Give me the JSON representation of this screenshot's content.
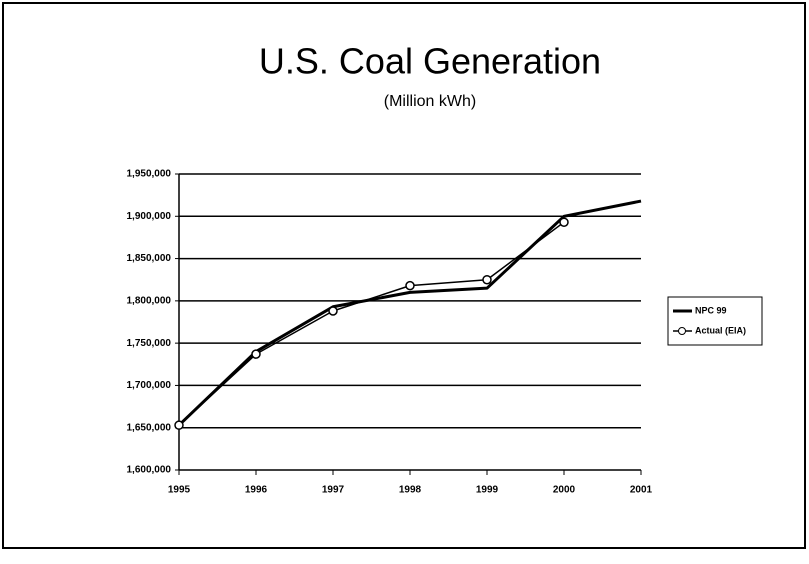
{
  "chart_data": {
    "type": "line",
    "title": "U.S. Coal Generation",
    "subtitle": "(Million kWh)",
    "x": [
      1995,
      1996,
      1997,
      1998,
      1999,
      2000,
      2001
    ],
    "series": [
      {
        "name": "NPC 99",
        "color": "#000000",
        "values": [
          1653000,
          1740000,
          1793000,
          1810000,
          1815000,
          1900000,
          1918000
        ]
      },
      {
        "name": "Actual (EIA)",
        "color": "#000000",
        "marker": "circle",
        "values": [
          1653000,
          1737000,
          1788000,
          1818000,
          1825000,
          1893000,
          null
        ]
      }
    ],
    "xlim": [
      1995,
      2001
    ],
    "xticks": [
      1995,
      1996,
      1997,
      1998,
      1999,
      2000,
      2001
    ],
    "ylim": [
      1600000,
      1950000
    ],
    "yticks": [
      {
        "value": 1600000,
        "label": "1,600,000"
      },
      {
        "value": 1650000,
        "label": "1,650,000"
      },
      {
        "value": 1700000,
        "label": "1,700,000"
      },
      {
        "value": 1750000,
        "label": "1,750,000"
      },
      {
        "value": 1800000,
        "label": "1,800,000"
      },
      {
        "value": 1850000,
        "label": "1,850,000"
      },
      {
        "value": 1900000,
        "label": "1,900,000"
      },
      {
        "value": 1950000,
        "label": "1,950,000"
      }
    ],
    "grid": true,
    "legend": "right"
  }
}
